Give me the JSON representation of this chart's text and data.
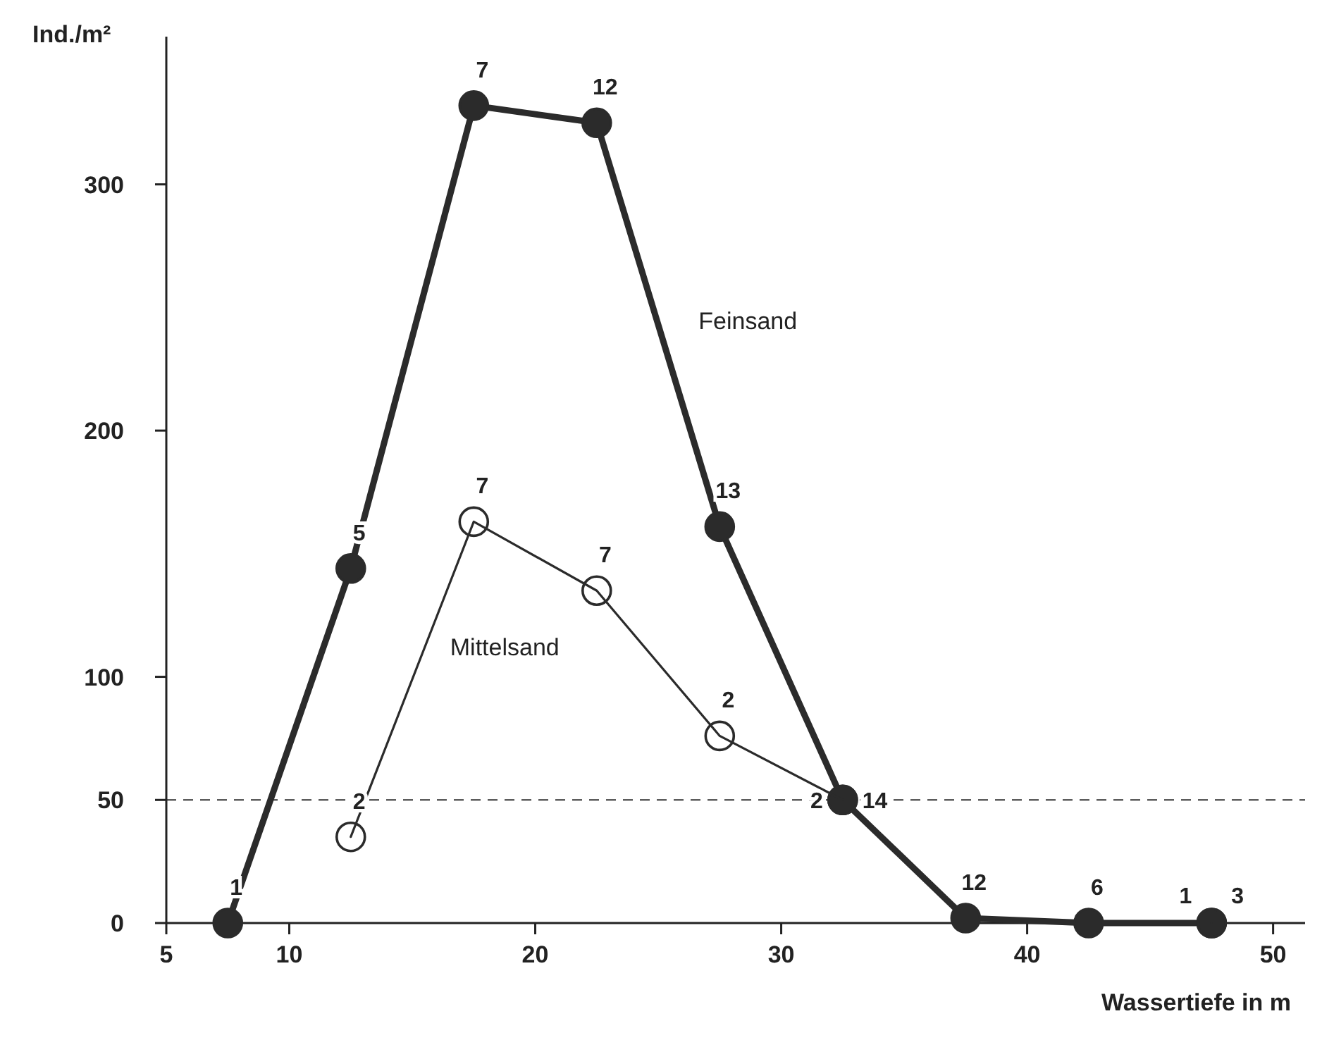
{
  "chart_data": {
    "type": "line",
    "xlabel": "Wassertiefe in m",
    "ylabel": "Ind./m²",
    "xlim": [
      5,
      51.3
    ],
    "ylim": [
      0,
      360
    ],
    "xticks": [
      5,
      10,
      20,
      30,
      40,
      50
    ],
    "yticks": [
      0,
      50,
      100,
      200,
      300
    ],
    "grid": false,
    "marker": "circle",
    "line_style": "solid",
    "series": [
      {
        "name": "Feinsand",
        "color": "#2b2b2b",
        "x": [
          7.5,
          12.5,
          17.5,
          22.5,
          27.5,
          32.5,
          37.5,
          42.5,
          47.5
        ],
        "values": [
          0,
          144,
          332,
          325,
          161,
          50,
          2,
          0,
          0
        ]
      },
      {
        "name": "Mittelsand",
        "color": "#2b2b2b",
        "x": [
          12.5,
          17.5,
          22.5,
          27.5,
          32.5,
          37.5,
          42.5,
          47.5
        ],
        "values": [
          35,
          163,
          135,
          76,
          50,
          null,
          null,
          0
        ]
      }
    ],
    "ref_lines": [
      {
        "axis": "y",
        "value": 50,
        "line_style": "dashed"
      }
    ],
    "annotations": [
      {
        "text": "1",
        "x": 7.5,
        "y": 0
      },
      {
        "text": "5",
        "x": 12.5,
        "y": 144
      },
      {
        "text": "7",
        "x": 17.5,
        "y": 332
      },
      {
        "text": "12",
        "x": 22.5,
        "y": 325
      },
      {
        "text": "13",
        "x": 27.5,
        "y": 161
      },
      {
        "text": "2",
        "x": 32.5,
        "y": 50
      },
      {
        "text": "14",
        "x": 32.5,
        "y": 50
      },
      {
        "text": "12",
        "x": 37.5,
        "y": 2
      },
      {
        "text": "6",
        "x": 42.5,
        "y": 0
      },
      {
        "text": "1",
        "x": 47.5,
        "y": 0
      },
      {
        "text": "3",
        "x": 47.5,
        "y": 0
      },
      {
        "text": "2",
        "x": 12.5,
        "y": 35
      },
      {
        "text": "7",
        "x": 17.5,
        "y": 163
      },
      {
        "text": "7",
        "x": 22.5,
        "y": 135
      },
      {
        "text": "2",
        "x": 27.5,
        "y": 76
      }
    ]
  }
}
